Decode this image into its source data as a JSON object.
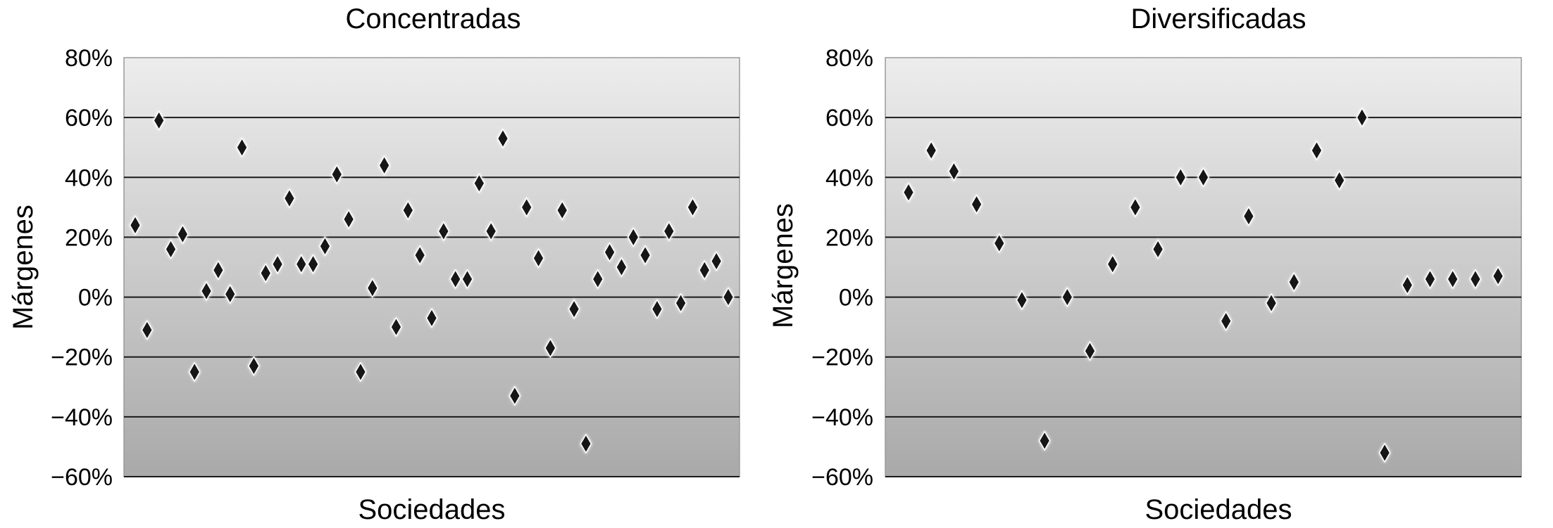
{
  "chart_data": [
    {
      "type": "scatter",
      "title": "Concentradas",
      "xlabel": "Sociedades",
      "ylabel": "Márgenes",
      "ylim": [
        -60,
        80
      ],
      "yticks": [
        80,
        60,
        40,
        20,
        0,
        -20,
        -40,
        -60
      ],
      "ytick_labels": [
        "80%",
        "60%",
        "40%",
        "20%",
        "0%",
        "−20%",
        "−40%",
        "−60%"
      ],
      "grid": true,
      "legend": "none",
      "x": [
        1,
        2,
        3,
        4,
        5,
        6,
        7,
        8,
        9,
        10,
        11,
        12,
        13,
        14,
        15,
        16,
        17,
        18,
        19,
        20,
        21,
        22,
        23,
        24,
        25,
        26,
        27,
        28,
        29,
        30,
        31,
        32,
        33,
        34,
        35,
        36,
        37,
        38,
        39,
        40,
        41,
        42,
        43,
        44,
        45,
        46,
        47,
        48,
        49,
        50,
        51
      ],
      "y": [
        24,
        -11,
        59,
        16,
        21,
        -25,
        2,
        9,
        1,
        50,
        -23,
        8,
        11,
        33,
        11,
        11,
        17,
        41,
        26,
        -25,
        3,
        44,
        -10,
        29,
        14,
        -7,
        22,
        6,
        6,
        38,
        22,
        53,
        -33,
        30,
        13,
        -17,
        29,
        -4,
        -49,
        6,
        15,
        10,
        20,
        14,
        -4,
        22,
        -2,
        30,
        9,
        12,
        0
      ]
    },
    {
      "type": "scatter",
      "title": "Diversificadas",
      "xlabel": "Sociedades",
      "ylabel": "Márgenes",
      "ylim": [
        -60,
        80
      ],
      "yticks": [
        80,
        60,
        40,
        20,
        0,
        -20,
        -40,
        -60
      ],
      "ytick_labels": [
        "80%",
        "60%",
        "40%",
        "20%",
        "0%",
        "−20%",
        "−40%",
        "−60%"
      ],
      "grid": true,
      "legend": "none",
      "x": [
        1,
        2,
        3,
        4,
        5,
        6,
        7,
        8,
        9,
        10,
        11,
        12,
        13,
        14,
        15,
        16,
        17,
        18,
        19,
        20,
        21,
        22,
        23,
        24,
        25,
        26,
        27
      ],
      "y": [
        35,
        49,
        42,
        31,
        18,
        -1,
        -48,
        0,
        -18,
        11,
        30,
        16,
        40,
        40,
        -8,
        27,
        -2,
        5,
        49,
        39,
        60,
        -52,
        4,
        6,
        6,
        6,
        7
      ]
    }
  ]
}
